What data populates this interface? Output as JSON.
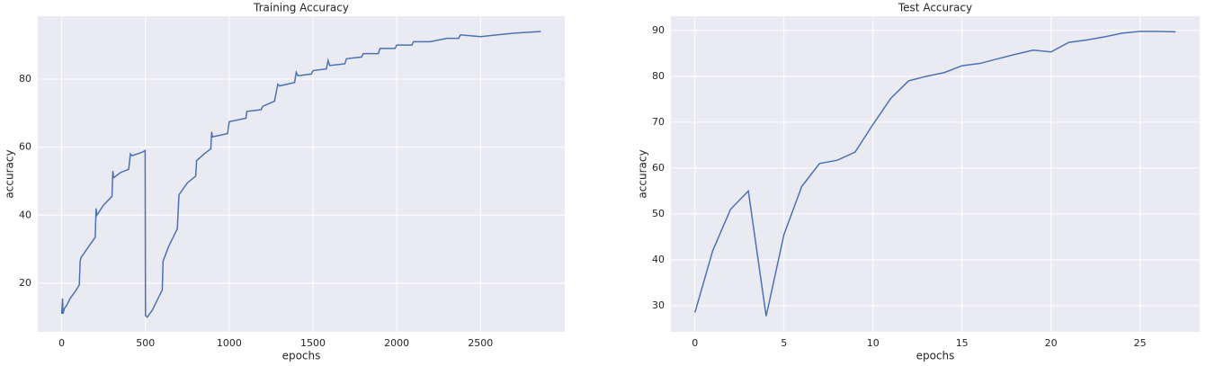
{
  "chart_data": [
    {
      "type": "line",
      "title": "Training Accuracy",
      "x_label": "epochs",
      "y_label": "accuracy",
      "color": "#4c72b0",
      "grid": true,
      "xlim": [
        -143,
        3003
      ],
      "ylim": [
        5.7,
        98.5
      ],
      "xticks": [
        0,
        500,
        1000,
        1500,
        2000,
        2500
      ],
      "yticks": [
        20,
        40,
        60,
        80
      ],
      "x": [
        0,
        5,
        8,
        15,
        30,
        50,
        80,
        105,
        110,
        115,
        150,
        200,
        205,
        210,
        250,
        300,
        305,
        310,
        350,
        400,
        410,
        420,
        480,
        498,
        500,
        510,
        540,
        600,
        605,
        640,
        690,
        700,
        750,
        800,
        805,
        850,
        890,
        895,
        900,
        990,
        1000,
        1100,
        1105,
        1190,
        1200,
        1270,
        1290,
        1300,
        1390,
        1400,
        1410,
        1490,
        1500,
        1580,
        1590,
        1600,
        1690,
        1700,
        1790,
        1800,
        1890,
        1900,
        1990,
        2000,
        2090,
        2100,
        2200,
        2300,
        2370,
        2380,
        2500,
        2600,
        2700,
        2860
      ],
      "values": [
        11,
        15.5,
        11,
        12.5,
        13.5,
        15.5,
        17.5,
        19.5,
        26.5,
        27.5,
        30,
        33.5,
        42,
        40,
        43,
        45.5,
        53,
        51,
        52.5,
        53.5,
        58,
        57.5,
        58.5,
        59,
        10.5,
        10,
        12,
        18,
        26.5,
        31,
        36,
        46,
        49.5,
        51.5,
        56,
        58,
        59.5,
        64.5,
        63,
        64,
        67.5,
        68.5,
        70.5,
        71,
        72,
        73.5,
        78.5,
        78,
        79,
        82,
        81,
        81.5,
        82.5,
        83,
        85.5,
        84,
        84.5,
        86,
        86.5,
        87.5,
        87.5,
        89,
        89,
        90,
        90,
        91,
        91,
        92,
        92,
        93,
        92.5,
        93,
        93.5,
        94
      ]
    },
    {
      "type": "line",
      "title": "Test Accuracy",
      "x_label": "epochs",
      "y_label": "accuracy",
      "color": "#4c72b0",
      "grid": true,
      "xlim": [
        -1.35,
        28.35
      ],
      "ylim": [
        24.3,
        93.1
      ],
      "xticks": [
        0,
        5,
        10,
        15,
        20,
        25
      ],
      "yticks": [
        30,
        40,
        50,
        60,
        70,
        80,
        90
      ],
      "x": [
        0,
        1,
        2,
        3,
        4,
        5,
        6,
        7,
        8,
        9,
        10,
        11,
        12,
        13,
        14,
        15,
        16,
        17,
        18,
        19,
        20,
        21,
        22,
        23,
        24,
        25,
        26,
        27
      ],
      "values": [
        28.5,
        42,
        51,
        55,
        27.7,
        45.5,
        56,
        61,
        61.7,
        63.5,
        69.5,
        75.2,
        79,
        80,
        80.8,
        82.3,
        82.8,
        83.8,
        84.8,
        85.7,
        85.3,
        87.4,
        87.9,
        88.6,
        89.4,
        89.8,
        89.8,
        89.7
      ]
    }
  ]
}
